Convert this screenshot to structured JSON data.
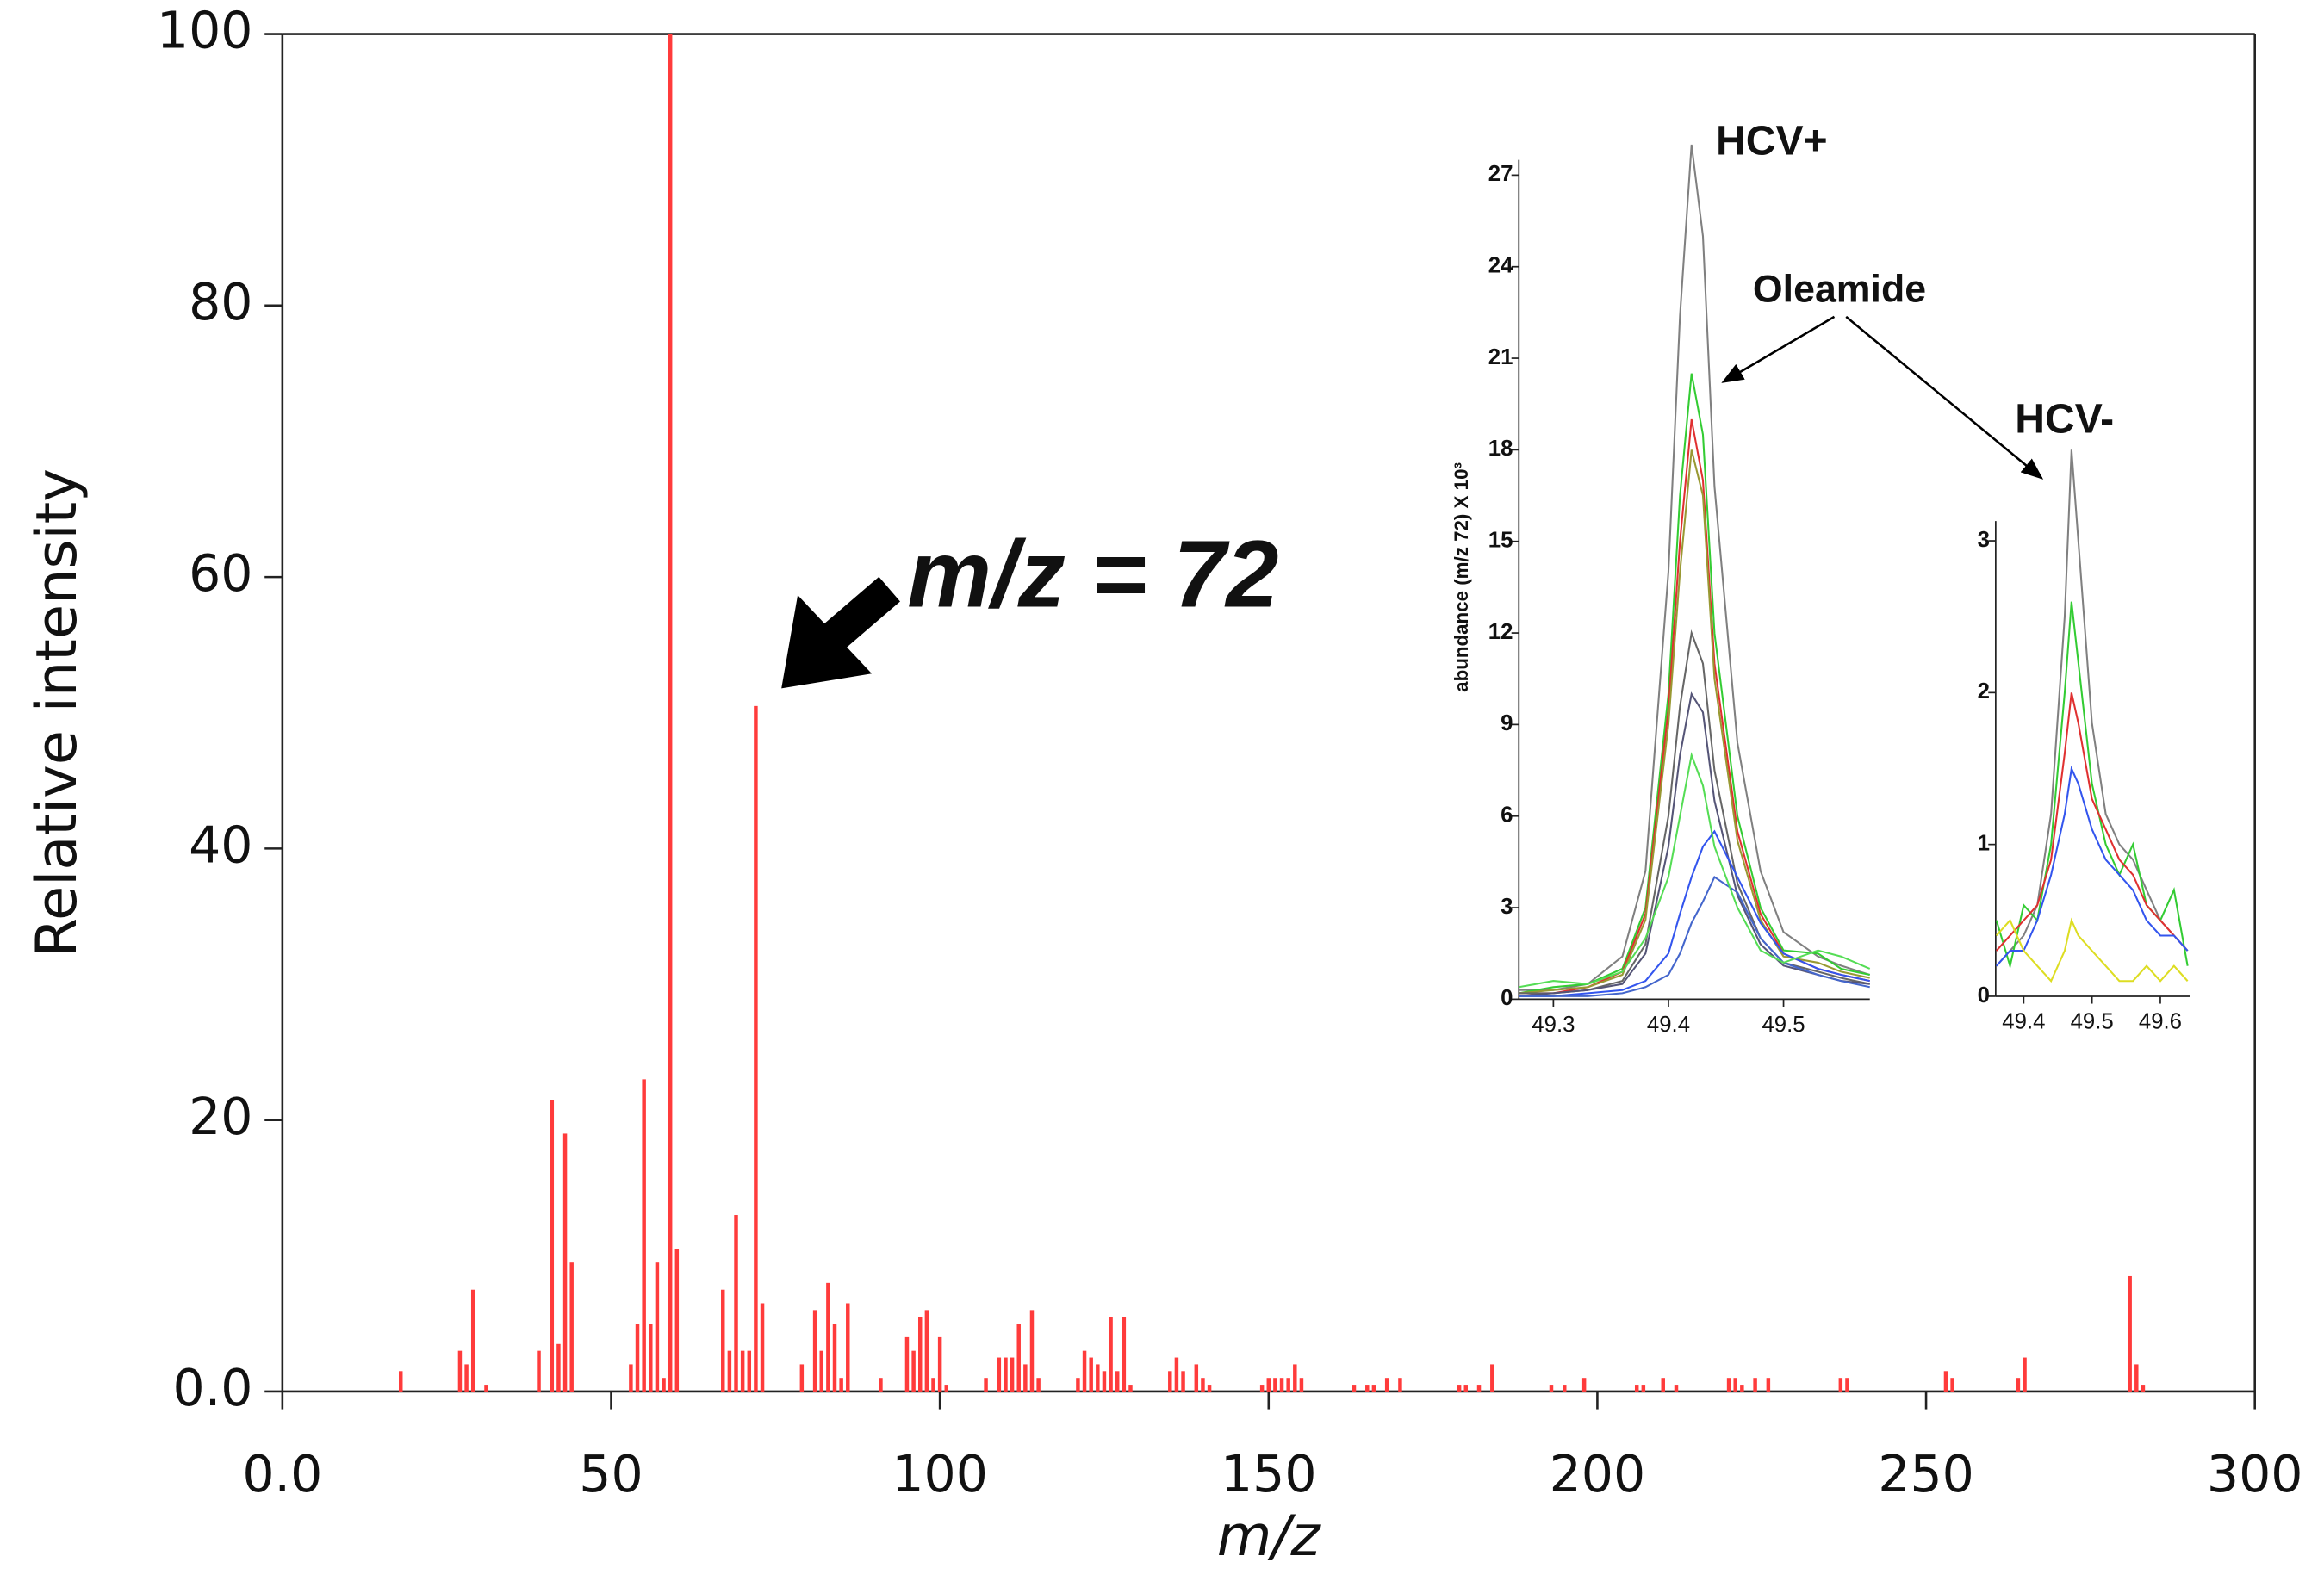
{
  "chart_data": [
    {
      "type": "bar",
      "xlabel": "m/z",
      "ylabel": "Relative intensity",
      "color": "#ff3b3b",
      "annotation": "m/z = 72",
      "xlim": [
        0,
        300
      ],
      "ylim": [
        0,
        100
      ],
      "xticks": [
        {
          "value": 0,
          "label": "0.0"
        },
        50,
        100,
        150,
        200,
        250,
        300
      ],
      "yticks": [
        {
          "value": 0,
          "label": "0.0"
        },
        20,
        40,
        60,
        80,
        100
      ],
      "x": [
        18,
        27,
        28,
        29,
        31,
        39,
        41,
        42,
        43,
        44,
        53,
        54,
        55,
        56,
        57,
        58,
        59,
        60,
        67,
        68,
        69,
        70,
        71,
        72,
        73,
        79,
        81,
        82,
        83,
        84,
        85,
        86,
        91,
        95,
        96,
        97,
        98,
        99,
        100,
        101,
        107,
        109,
        110,
        111,
        112,
        113,
        114,
        115,
        121,
        122,
        123,
        124,
        125,
        126,
        127,
        128,
        129,
        135,
        136,
        137,
        139,
        140,
        141,
        149,
        150,
        151,
        152,
        153,
        154,
        155,
        163,
        165,
        166,
        168,
        170,
        179,
        180,
        182,
        184,
        193,
        195,
        198,
        206,
        207,
        210,
        212,
        220,
        221,
        222,
        224,
        226,
        237,
        238,
        253,
        254,
        264,
        265,
        281,
        282,
        283
      ],
      "values": [
        1.5,
        3,
        2,
        7.5,
        0.5,
        3,
        21.5,
        3.5,
        19,
        9.5,
        2,
        5,
        23,
        5,
        9.5,
        1,
        100,
        10.5,
        7.5,
        3,
        13,
        3,
        3,
        50.5,
        6.5,
        2,
        6,
        3,
        8,
        5,
        1,
        6.5,
        1,
        4,
        3,
        5.5,
        6,
        1,
        4,
        0.5,
        1,
        2.5,
        2.5,
        2.5,
        5,
        2,
        6,
        1,
        1,
        3,
        2.5,
        2,
        1.5,
        5.5,
        1.5,
        5.5,
        0.5,
        1.5,
        2.5,
        1.5,
        2,
        1,
        0.5,
        0.5,
        1,
        1,
        1,
        1,
        2,
        1,
        0.5,
        0.5,
        0.5,
        1,
        1,
        0.5,
        0.5,
        0.5,
        2,
        0.5,
        0.5,
        1,
        0.5,
        0.5,
        1,
        0.5,
        1,
        1,
        0.5,
        1,
        1,
        1,
        1,
        1.5,
        1,
        1,
        2.5,
        8.5,
        2,
        0.5
      ]
    },
    {
      "type": "line",
      "ylabel": "abundance (m/z 72) X 10³",
      "annotations": [
        "HCV+",
        "Oleamide"
      ],
      "xlim": [
        49.27,
        49.575
      ],
      "ylim": [
        0,
        27.5
      ],
      "xticks": [
        49.3,
        49.4,
        49.5
      ],
      "yticks": [
        0,
        3,
        6,
        9,
        12,
        15,
        18,
        21,
        24,
        27
      ],
      "x": [
        49.27,
        49.3,
        49.33,
        49.36,
        49.38,
        49.4,
        49.41,
        49.42,
        49.43,
        49.44,
        49.46,
        49.48,
        49.5,
        49.53,
        49.55,
        49.575
      ],
      "series": [
        {
          "color": "#808080",
          "values": [
            0.3,
            0.3,
            0.5,
            1.4,
            4.2,
            14,
            22.4,
            28,
            25,
            16.8,
            8.4,
            4.2,
            2.2,
            1.4,
            1.1,
            0.8
          ]
        },
        {
          "color": "#33cc33",
          "values": [
            0.2,
            0.4,
            0.5,
            1,
            3,
            10,
            16.5,
            20.5,
            18.5,
            12,
            6,
            3,
            1.6,
            1.5,
            1,
            0.8
          ]
        },
        {
          "color": "#e03030",
          "values": [
            0.2,
            0.2,
            0.4,
            0.9,
            2.8,
            9.5,
            15,
            19,
            17,
            11,
            5.5,
            2.8,
            1.5,
            1,
            0.8,
            0.6
          ]
        },
        {
          "color": "#999933",
          "values": [
            0.2,
            0.3,
            0.4,
            0.8,
            2.6,
            9,
            14,
            18,
            16.5,
            10.5,
            5.2,
            2.6,
            1.4,
            1.2,
            0.9,
            0.7
          ]
        },
        {
          "color": "#666666",
          "values": [
            0.2,
            0.2,
            0.3,
            0.6,
            1.8,
            6,
            9.6,
            12,
            11,
            7.5,
            3.8,
            2,
            1.2,
            0.9,
            0.7,
            0.5
          ]
        },
        {
          "color": "#555577",
          "values": [
            0.1,
            0.2,
            0.3,
            0.5,
            1.5,
            5,
            8,
            10,
            9.4,
            6.5,
            3.4,
            1.8,
            1.1,
            0.8,
            0.6,
            0.5
          ]
        },
        {
          "color": "#3355ee",
          "values": [
            0.1,
            0.1,
            0.2,
            0.3,
            0.6,
            1.5,
            2.8,
            4,
            5,
            5.5,
            4,
            2.5,
            1.5,
            1,
            0.8,
            0.6
          ]
        },
        {
          "color": "#4466cc",
          "values": [
            0.1,
            0.1,
            0.1,
            0.2,
            0.4,
            0.8,
            1.5,
            2.5,
            3.2,
            4,
            3.5,
            2,
            1.2,
            0.8,
            0.6,
            0.4
          ]
        },
        {
          "color": "#55dd55",
          "values": [
            0.4,
            0.6,
            0.5,
            0.9,
            2,
            4,
            6,
            8,
            7,
            5,
            3,
            1.6,
            1.2,
            1.6,
            1.4,
            1
          ]
        }
      ]
    },
    {
      "type": "line",
      "annotations": [
        "HCV-"
      ],
      "xlim": [
        49.359,
        49.643
      ],
      "ylim": [
        0,
        3.13
      ],
      "xticks": [
        49.4,
        49.5,
        49.6
      ],
      "yticks": [
        0,
        1,
        2,
        3
      ],
      "x": [
        49.36,
        49.38,
        49.4,
        49.42,
        49.44,
        49.46,
        49.47,
        49.48,
        49.5,
        49.52,
        49.54,
        49.56,
        49.58,
        49.6,
        49.62,
        49.64
      ],
      "series": [
        {
          "color": "#808080",
          "values": [
            0.2,
            0.3,
            0.4,
            0.6,
            1.2,
            2.5,
            3.6,
            3,
            1.8,
            1.2,
            1,
            0.9,
            0.7,
            0.5,
            0.4,
            0.3
          ]
        },
        {
          "color": "#33cc33",
          "values": [
            0.5,
            0.2,
            0.6,
            0.5,
            1,
            2,
            2.6,
            2.2,
            1.4,
            1,
            0.8,
            1,
            0.6,
            0.5,
            0.7,
            0.2
          ]
        },
        {
          "color": "#e03030",
          "values": [
            0.3,
            0.4,
            0.5,
            0.6,
            0.9,
            1.6,
            2,
            1.8,
            1.3,
            1.1,
            0.9,
            0.8,
            0.6,
            0.5,
            0.4,
            0.3
          ]
        },
        {
          "color": "#3355ee",
          "values": [
            0.2,
            0.3,
            0.3,
            0.5,
            0.8,
            1.2,
            1.5,
            1.4,
            1.1,
            0.9,
            0.8,
            0.7,
            0.5,
            0.4,
            0.4,
            0.3
          ]
        },
        {
          "color": "#dddd22",
          "values": [
            0.4,
            0.5,
            0.3,
            0.2,
            0.1,
            0.3,
            0.5,
            0.4,
            0.3,
            0.2,
            0.1,
            0.1,
            0.2,
            0.1,
            0.2,
            0.1
          ]
        }
      ]
    }
  ]
}
